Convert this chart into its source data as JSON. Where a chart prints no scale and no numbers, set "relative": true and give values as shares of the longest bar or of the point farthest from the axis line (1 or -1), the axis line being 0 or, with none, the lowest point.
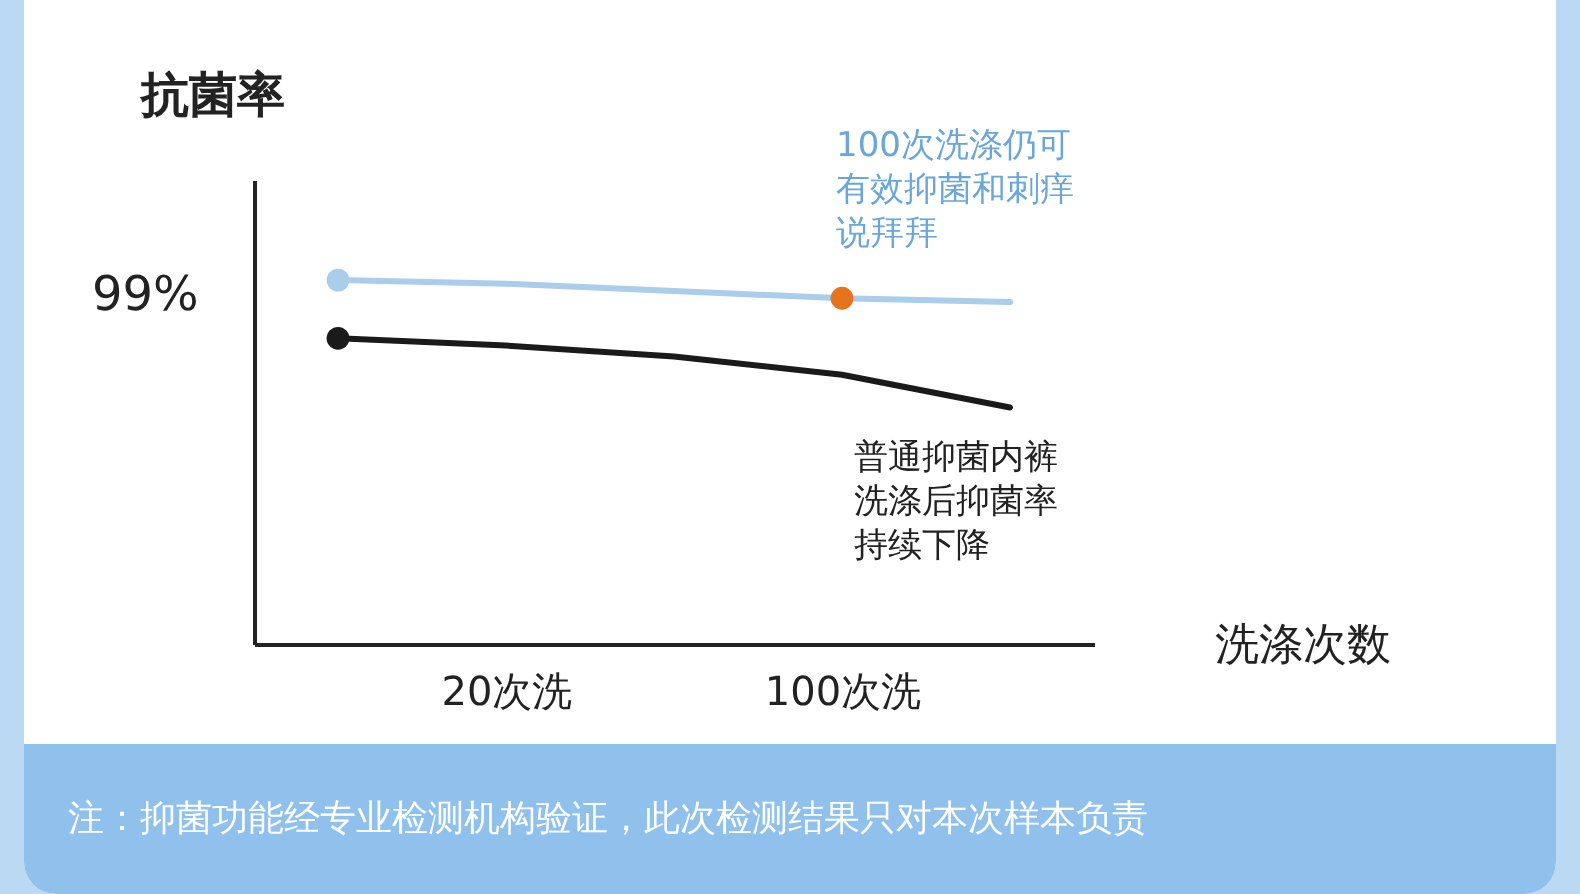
{
  "chart_data": {
    "type": "line",
    "relative": true,
    "ylabel": "抗菌率",
    "xlabel": "洗涤次数",
    "categories": [
      null,
      "20次洗",
      null,
      "100次洗",
      null
    ],
    "series": [
      {
        "color": "#a9cdea",
        "values": [
          1,
          0.99,
          0.97,
          0.95,
          0.94
        ]
      },
      {
        "color": "#1a1a1a",
        "values": [
          0.84,
          0.82,
          0.79,
          0.74,
          0.65
        ]
      },
      {
        "type": "scatter",
        "color": "#a9cdea",
        "values": [
          1,
          null,
          null,
          null,
          null
        ]
      },
      {
        "type": "scatter",
        "color": "#1a1a1a",
        "values": [
          0.84,
          null,
          null,
          null,
          null
        ]
      },
      {
        "type": "scatter",
        "color": "#e8731e",
        "values": [
          null,
          null,
          null,
          0.95,
          null
        ]
      }
    ],
    "line_style": "solid",
    "annotations": [
      "99%",
      "100次洗涤仍可有效抑菌和刺痒说拜拜",
      "普通抑菌内裤洗涤后抑菌率持续下降",
      "注：抑菌功能经专业检测机构验证，此次检测结果只对本次样本负责"
    ]
  }
}
